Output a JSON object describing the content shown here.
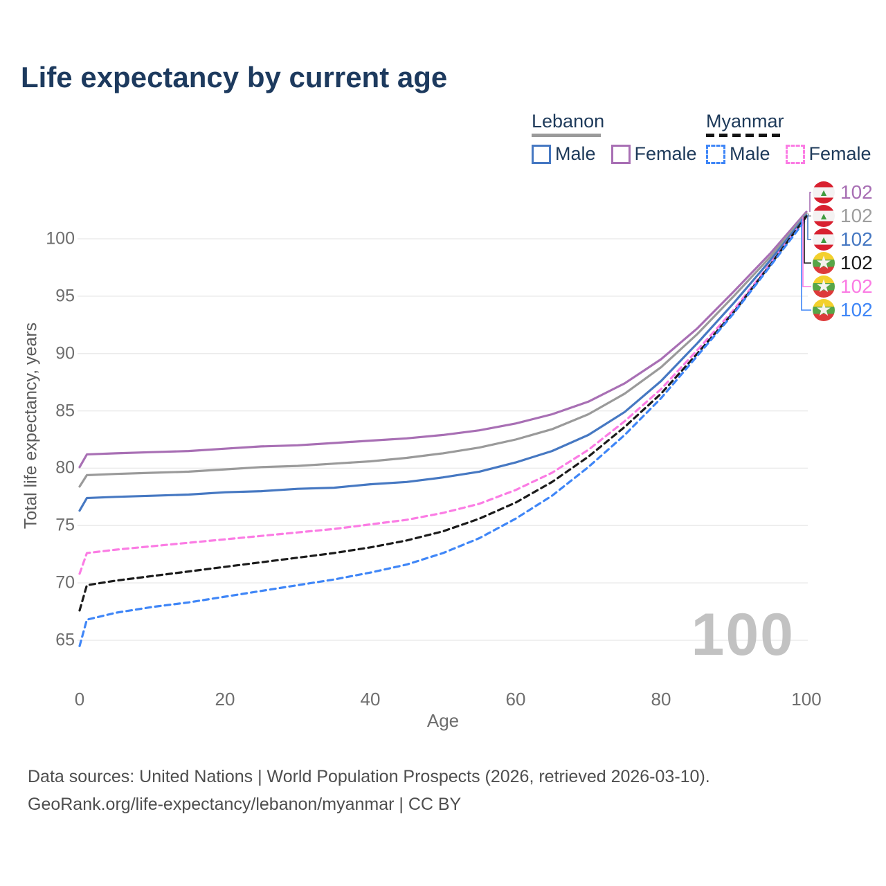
{
  "title": "Life expectancy by current age",
  "colors": {
    "title_text": "#1d3a5e",
    "legend_text": "#1e3a5a",
    "axis_text": "#6e6e6e",
    "gridline": "#ebebeb",
    "watermark": "#c2c2c2",
    "footer_text": "#4e4e4e",
    "lebanon_rule": "#9a9a9a",
    "myanmar_rule": "#141414"
  },
  "legend": {
    "lebanon": {
      "country": "Lebanon",
      "male_label": "Male",
      "female_label": "Female"
    },
    "myanmar": {
      "country": "Myanmar",
      "male_label": "Male",
      "female_label": "Female"
    }
  },
  "watermark_age": "100",
  "footer": {
    "line1": "Data sources: United Nations | World Population Prospects (2026, retrieved 2026-03-10).",
    "line2": "GeoRank.org/life-expectancy/lebanon/myanmar | CC BY"
  },
  "chart_data": {
    "type": "line",
    "title": "Life expectancy by current age",
    "xlabel": "Age",
    "ylabel": "Total life expectancy, years",
    "xlim": [
      0,
      100
    ],
    "ylim": [
      63,
      103.5
    ],
    "xticks": [
      0,
      20,
      40,
      60,
      80,
      100
    ],
    "yticks": [
      65,
      70,
      75,
      80,
      85,
      90,
      95,
      100
    ],
    "grid": "horizontal",
    "legend_position": "top-right",
    "x": [
      0,
      1,
      5,
      10,
      15,
      20,
      25,
      30,
      35,
      40,
      45,
      50,
      55,
      60,
      65,
      70,
      75,
      80,
      85,
      90,
      95,
      100
    ],
    "series": [
      {
        "id": "lebanon-female",
        "country": "Lebanon",
        "sex": "Female",
        "color": "#a86fb4",
        "style": "solid",
        "values": [
          80.1,
          81.2,
          81.3,
          81.4,
          81.5,
          81.7,
          81.9,
          82.0,
          82.2,
          82.4,
          82.6,
          82.9,
          83.3,
          83.9,
          84.7,
          85.8,
          87.4,
          89.5,
          92.2,
          95.4,
          98.7,
          102.35
        ]
      },
      {
        "id": "lebanon-both",
        "country": "Lebanon",
        "sex": "Both",
        "color": "#9a9a9a",
        "style": "solid",
        "values": [
          78.4,
          79.4,
          79.5,
          79.6,
          79.7,
          79.9,
          80.1,
          80.2,
          80.4,
          80.6,
          80.9,
          81.3,
          81.8,
          82.5,
          83.4,
          84.7,
          86.5,
          88.8,
          91.7,
          95.0,
          98.4,
          102.2
        ]
      },
      {
        "id": "lebanon-male",
        "country": "Lebanon",
        "sex": "Male",
        "color": "#4678c2",
        "style": "solid",
        "values": [
          76.3,
          77.4,
          77.5,
          77.6,
          77.7,
          77.9,
          78.0,
          78.2,
          78.3,
          78.6,
          78.8,
          79.2,
          79.7,
          80.5,
          81.5,
          82.9,
          84.9,
          87.6,
          90.9,
          94.4,
          98.1,
          102.05
        ]
      },
      {
        "id": "myanmar-female",
        "country": "Myanmar",
        "sex": "Female",
        "color": "#fb7ce4",
        "style": "dashed",
        "values": [
          70.8,
          72.6,
          72.9,
          73.2,
          73.5,
          73.8,
          74.1,
          74.4,
          74.7,
          75.1,
          75.5,
          76.1,
          76.9,
          78.1,
          79.6,
          81.6,
          84.1,
          86.9,
          90.3,
          93.8,
          97.8,
          101.9
        ]
      },
      {
        "id": "myanmar-both",
        "country": "Myanmar",
        "sex": "Both",
        "color": "#1b1b1b",
        "style": "dashed",
        "values": [
          67.6,
          69.8,
          70.2,
          70.6,
          71.0,
          71.4,
          71.8,
          72.2,
          72.6,
          73.1,
          73.7,
          74.5,
          75.6,
          77.0,
          78.8,
          81.0,
          83.6,
          86.5,
          90.0,
          93.6,
          97.7,
          101.95
        ]
      },
      {
        "id": "myanmar-male",
        "country": "Myanmar",
        "sex": "Male",
        "color": "#3f86f7",
        "style": "dashed",
        "values": [
          64.5,
          66.8,
          67.4,
          67.9,
          68.3,
          68.8,
          69.3,
          69.8,
          70.3,
          70.9,
          71.6,
          72.6,
          73.9,
          75.6,
          77.6,
          80.1,
          82.9,
          86.1,
          89.8,
          93.5,
          97.6,
          101.75
        ]
      }
    ],
    "end_labels": [
      {
        "series_id": "lebanon-female",
        "flag": "lebanon",
        "value": "102",
        "color": "#a86fb4"
      },
      {
        "series_id": "lebanon-both",
        "flag": "lebanon",
        "value": "102",
        "color": "#9e9e9e"
      },
      {
        "series_id": "lebanon-male",
        "flag": "lebanon",
        "value": "102",
        "color": "#4678c2"
      },
      {
        "series_id": "myanmar-both",
        "flag": "myanmar",
        "value": "102",
        "color": "#1b1b1b"
      },
      {
        "series_id": "myanmar-female",
        "flag": "myanmar",
        "value": "102",
        "color": "#fb7ce4"
      },
      {
        "series_id": "myanmar-male",
        "flag": "myanmar",
        "value": "102",
        "color": "#3f86f7"
      }
    ],
    "flag_glyphs": {
      "lebanon": "▲",
      "myanmar": "★"
    }
  }
}
